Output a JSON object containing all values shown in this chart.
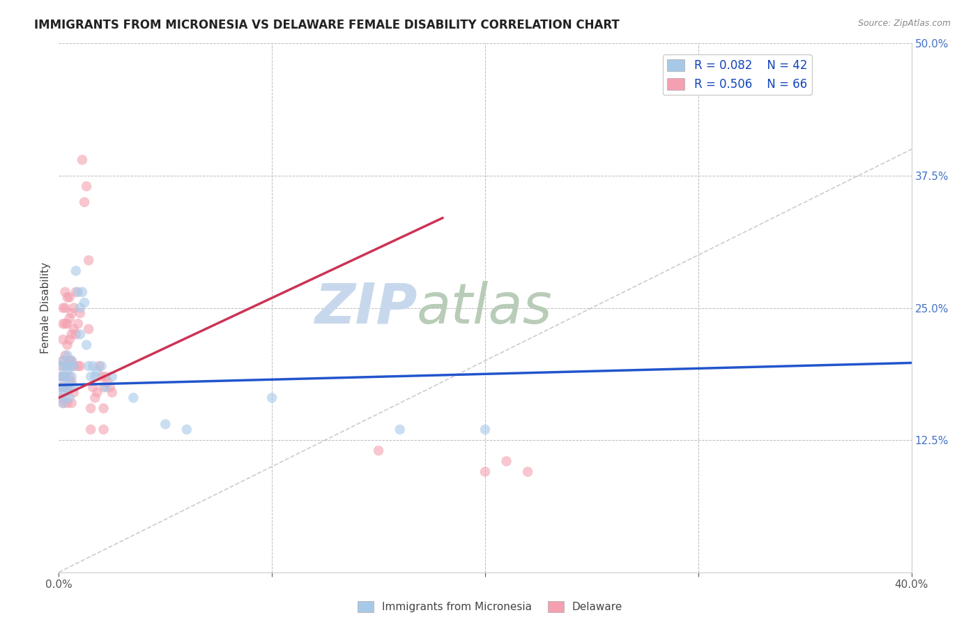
{
  "title": "IMMIGRANTS FROM MICRONESIA VS DELAWARE FEMALE DISABILITY CORRELATION CHART",
  "source": "Source: ZipAtlas.com",
  "ylabel": "Female Disability",
  "xlim": [
    0.0,
    0.4
  ],
  "ylim": [
    0.0,
    0.5
  ],
  "legend_r1": "R = 0.082",
  "legend_n1": "N = 42",
  "legend_r2": "R = 0.506",
  "legend_n2": "N = 66",
  "blue_color": "#a8c8e8",
  "pink_color": "#f4a0b0",
  "blue_trend_color": "#2255cc",
  "pink_trend_color": "#cc3355",
  "blue_scatter": [
    [
      0.001,
      0.195
    ],
    [
      0.001,
      0.185
    ],
    [
      0.001,
      0.175
    ],
    [
      0.002,
      0.2
    ],
    [
      0.002,
      0.185
    ],
    [
      0.002,
      0.17
    ],
    [
      0.002,
      0.16
    ],
    [
      0.003,
      0.195
    ],
    [
      0.003,
      0.185
    ],
    [
      0.003,
      0.175
    ],
    [
      0.003,
      0.165
    ],
    [
      0.004,
      0.205
    ],
    [
      0.004,
      0.19
    ],
    [
      0.004,
      0.175
    ],
    [
      0.005,
      0.195
    ],
    [
      0.005,
      0.18
    ],
    [
      0.005,
      0.165
    ],
    [
      0.006,
      0.2
    ],
    [
      0.006,
      0.185
    ],
    [
      0.007,
      0.195
    ],
    [
      0.007,
      0.175
    ],
    [
      0.008,
      0.285
    ],
    [
      0.009,
      0.265
    ],
    [
      0.01,
      0.25
    ],
    [
      0.01,
      0.225
    ],
    [
      0.011,
      0.265
    ],
    [
      0.012,
      0.255
    ],
    [
      0.013,
      0.215
    ],
    [
      0.014,
      0.195
    ],
    [
      0.015,
      0.185
    ],
    [
      0.016,
      0.195
    ],
    [
      0.017,
      0.185
    ],
    [
      0.018,
      0.19
    ],
    [
      0.02,
      0.195
    ],
    [
      0.022,
      0.175
    ],
    [
      0.025,
      0.185
    ],
    [
      0.035,
      0.165
    ],
    [
      0.05,
      0.14
    ],
    [
      0.06,
      0.135
    ],
    [
      0.1,
      0.165
    ],
    [
      0.16,
      0.135
    ],
    [
      0.2,
      0.135
    ]
  ],
  "pink_scatter": [
    [
      0.001,
      0.195
    ],
    [
      0.001,
      0.185
    ],
    [
      0.001,
      0.175
    ],
    [
      0.001,
      0.165
    ],
    [
      0.002,
      0.25
    ],
    [
      0.002,
      0.235
    ],
    [
      0.002,
      0.22
    ],
    [
      0.002,
      0.2
    ],
    [
      0.002,
      0.185
    ],
    [
      0.002,
      0.175
    ],
    [
      0.002,
      0.16
    ],
    [
      0.003,
      0.265
    ],
    [
      0.003,
      0.25
    ],
    [
      0.003,
      0.235
    ],
    [
      0.003,
      0.205
    ],
    [
      0.003,
      0.185
    ],
    [
      0.003,
      0.175
    ],
    [
      0.004,
      0.26
    ],
    [
      0.004,
      0.235
    ],
    [
      0.004,
      0.215
    ],
    [
      0.004,
      0.195
    ],
    [
      0.004,
      0.175
    ],
    [
      0.004,
      0.16
    ],
    [
      0.005,
      0.26
    ],
    [
      0.005,
      0.24
    ],
    [
      0.005,
      0.22
    ],
    [
      0.005,
      0.2
    ],
    [
      0.005,
      0.185
    ],
    [
      0.006,
      0.245
    ],
    [
      0.006,
      0.225
    ],
    [
      0.006,
      0.2
    ],
    [
      0.006,
      0.18
    ],
    [
      0.006,
      0.16
    ],
    [
      0.007,
      0.25
    ],
    [
      0.007,
      0.23
    ],
    [
      0.007,
      0.195
    ],
    [
      0.007,
      0.17
    ],
    [
      0.008,
      0.265
    ],
    [
      0.008,
      0.225
    ],
    [
      0.009,
      0.235
    ],
    [
      0.009,
      0.195
    ],
    [
      0.01,
      0.245
    ],
    [
      0.01,
      0.195
    ],
    [
      0.011,
      0.39
    ],
    [
      0.012,
      0.35
    ],
    [
      0.013,
      0.365
    ],
    [
      0.014,
      0.295
    ],
    [
      0.014,
      0.23
    ],
    [
      0.015,
      0.155
    ],
    [
      0.015,
      0.135
    ],
    [
      0.016,
      0.175
    ],
    [
      0.017,
      0.165
    ],
    [
      0.018,
      0.17
    ],
    [
      0.019,
      0.195
    ],
    [
      0.02,
      0.185
    ],
    [
      0.021,
      0.175
    ],
    [
      0.021,
      0.155
    ],
    [
      0.021,
      0.135
    ],
    [
      0.022,
      0.185
    ],
    [
      0.023,
      0.18
    ],
    [
      0.024,
      0.175
    ],
    [
      0.025,
      0.17
    ],
    [
      0.15,
      0.115
    ],
    [
      0.2,
      0.095
    ],
    [
      0.21,
      0.105
    ],
    [
      0.22,
      0.095
    ]
  ],
  "background_color": "#ffffff",
  "grid_color": "#bbbbbb",
  "watermark_zip": "ZIP",
  "watermark_atlas": "atlas",
  "watermark_color_zip": "#c5d5e8",
  "watermark_color_atlas": "#c8d8c8"
}
